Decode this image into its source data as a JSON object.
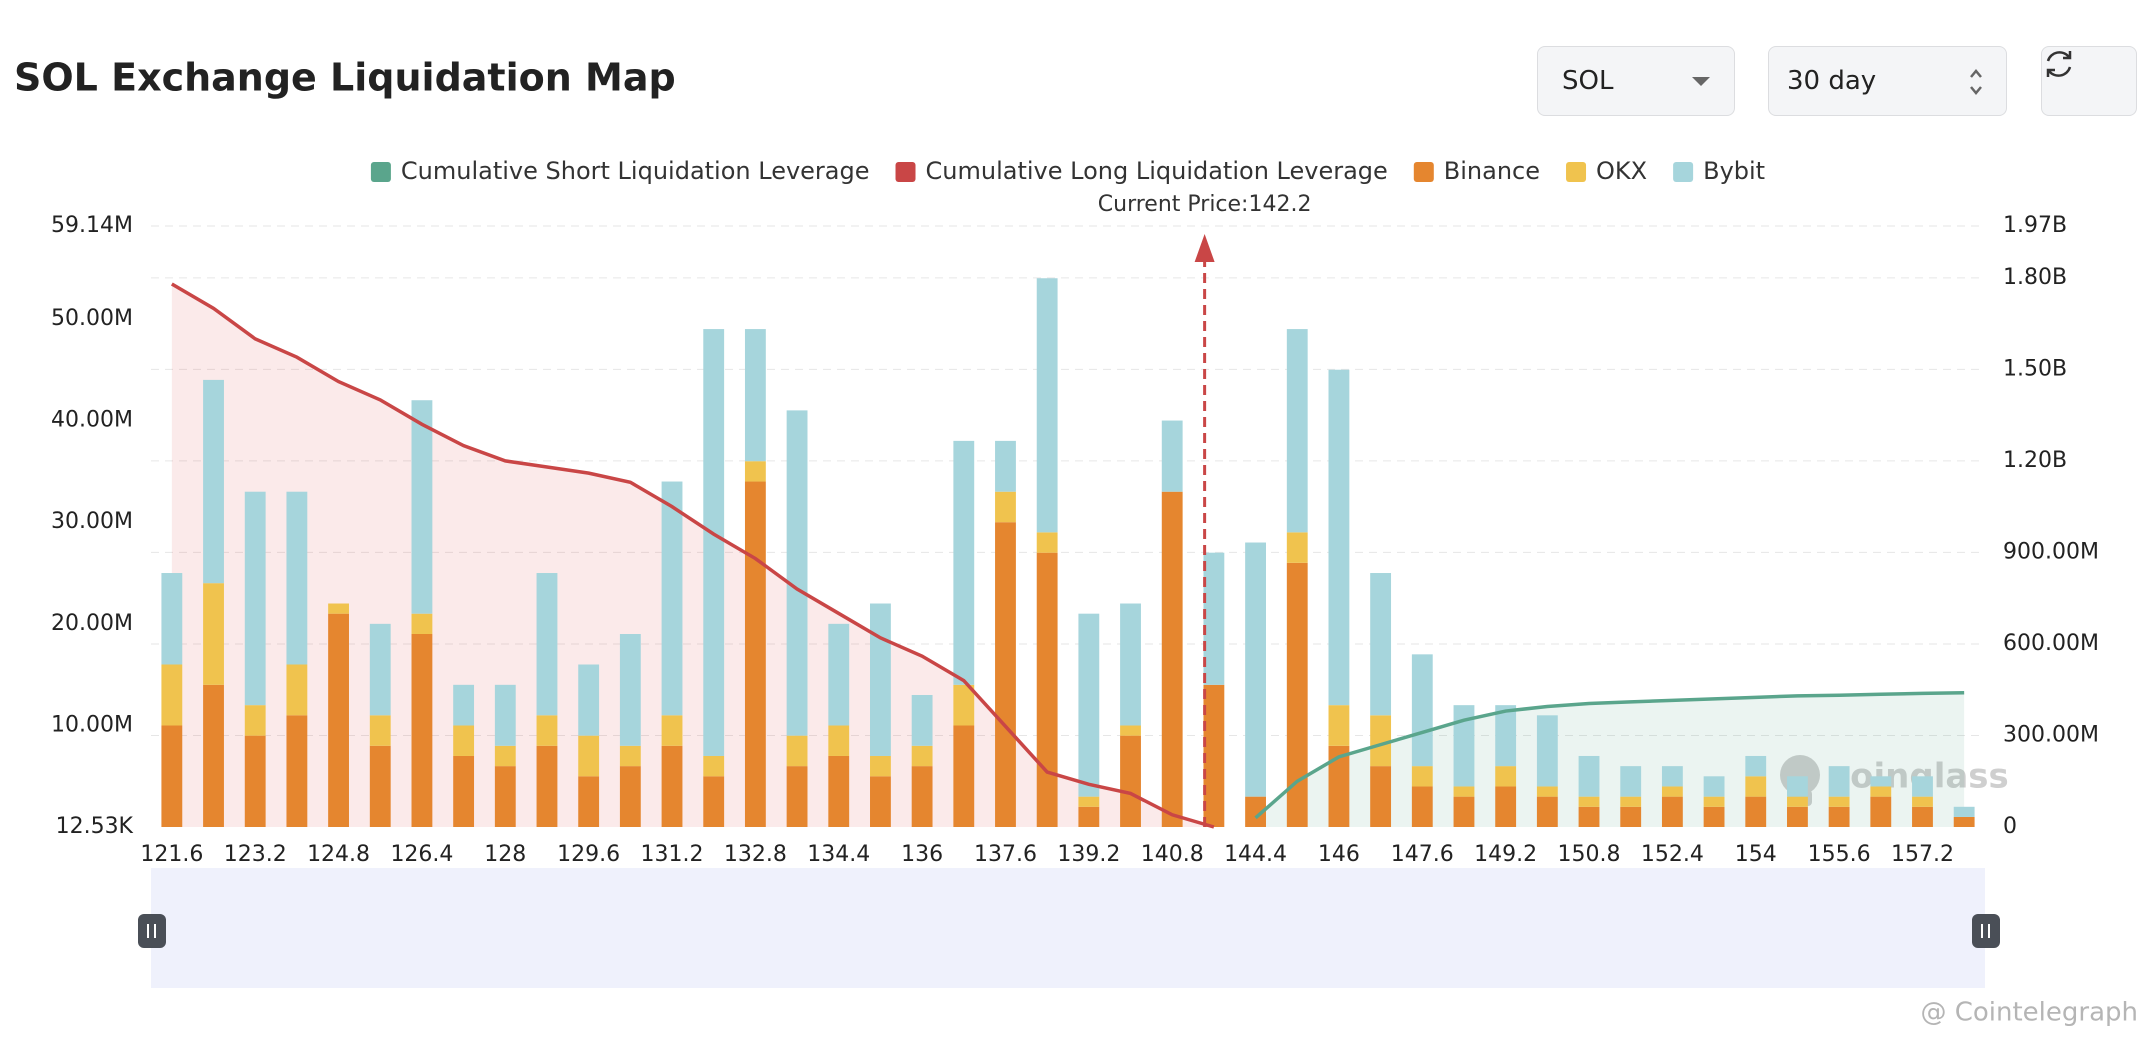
{
  "chart_data": {
    "type": "bar",
    "title": "SOL Exchange Liquidation Map",
    "categories": [
      "121.6",
      null,
      "123.2",
      null,
      "124.8",
      null,
      "126.4",
      null,
      "128",
      null,
      "129.6",
      null,
      "131.2",
      null,
      "132.8",
      null,
      "134.4",
      null,
      "136",
      null,
      "137.6",
      null,
      "139.2",
      null,
      "140.8",
      null,
      "144.4",
      null,
      "146",
      null,
      "147.6",
      null,
      "149.2",
      null,
      "150.8",
      null,
      "152.4",
      null,
      "154",
      null,
      "155.6",
      null,
      "157.2",
      null
    ],
    "series": [
      {
        "name": "Cumulative Short Liquidation Leverage",
        "type": "line",
        "axis": "y2",
        "color": "#5aa58c",
        "fill": "rgba(90,165,140,0.12)",
        "values": [
          null,
          null,
          null,
          null,
          null,
          null,
          null,
          null,
          null,
          null,
          null,
          null,
          null,
          null,
          null,
          null,
          null,
          null,
          null,
          null,
          null,
          null,
          null,
          null,
          null,
          null,
          30000000,
          150000000,
          230000000,
          270000000,
          310000000,
          350000000,
          380000000,
          395000000,
          405000000,
          410000000,
          415000000,
          420000000,
          425000000,
          430000000,
          432000000,
          435000000,
          438000000,
          440000000
        ]
      },
      {
        "name": "Cumulative Long Liquidation Leverage",
        "type": "line",
        "axis": "y2",
        "color": "#c94646",
        "fill": "rgba(220,80,80,0.12)",
        "values": [
          1780000000,
          1700000000,
          1600000000,
          1540000000,
          1460000000,
          1400000000,
          1320000000,
          1250000000,
          1200000000,
          1180000000,
          1160000000,
          1130000000,
          1050000000,
          960000000,
          880000000,
          780000000,
          700000000,
          620000000,
          560000000,
          480000000,
          330000000,
          180000000,
          140000000,
          110000000,
          40000000,
          0,
          null,
          null,
          null,
          null,
          null,
          null,
          null,
          null,
          null,
          null,
          null,
          null,
          null,
          null,
          null,
          null,
          null,
          null
        ]
      },
      {
        "name": "Binance",
        "type": "bar",
        "color": "#e5862f",
        "values": [
          10000000,
          14000000,
          9000000,
          11000000,
          21000000,
          8000000,
          19000000,
          7000000,
          6000000,
          8000000,
          5000000,
          6000000,
          8000000,
          5000000,
          34000000,
          6000000,
          7000000,
          5000000,
          6000000,
          10000000,
          30000000,
          27000000,
          2000000,
          9000000,
          33000000,
          14000000,
          3000000,
          26000000,
          8000000,
          6000000,
          4000000,
          3000000,
          4000000,
          3000000,
          2000000,
          2000000,
          3000000,
          2000000,
          3000000,
          2000000,
          2000000,
          3000000,
          2000000,
          1000000
        ]
      },
      {
        "name": "OKX",
        "type": "bar",
        "color": "#f0c34e",
        "values": [
          6000000,
          10000000,
          3000000,
          5000000,
          1000000,
          3000000,
          2000000,
          3000000,
          2000000,
          3000000,
          4000000,
          2000000,
          3000000,
          2000000,
          2000000,
          3000000,
          3000000,
          2000000,
          2000000,
          4000000,
          3000000,
          2000000,
          1000000,
          1000000,
          0,
          0,
          0,
          3000000,
          4000000,
          5000000,
          2000000,
          1000000,
          2000000,
          1000000,
          1000000,
          1000000,
          1000000,
          1000000,
          2000000,
          1000000,
          1000000,
          1000000,
          1000000,
          0
        ]
      },
      {
        "name": "Bybit",
        "type": "bar",
        "color": "#a6d5dc",
        "values": [
          9000000,
          20000000,
          21000000,
          17000000,
          0,
          9000000,
          21000000,
          4000000,
          6000000,
          14000000,
          7000000,
          11000000,
          23000000,
          42000000,
          13000000,
          32000000,
          10000000,
          15000000,
          5000000,
          24000000,
          5000000,
          25000000,
          18000000,
          12000000,
          7000000,
          13000000,
          25000000,
          20000000,
          33000000,
          14000000,
          11000000,
          8000000,
          6000000,
          7000000,
          4000000,
          3000000,
          2000000,
          2000000,
          2000000,
          2000000,
          3000000,
          1000000,
          2000000,
          1000000
        ]
      }
    ],
    "ylim": [
      12530,
      59140000
    ],
    "yticks": [
      {
        "value": 12530,
        "label": "12.53K"
      },
      {
        "value": 10000000,
        "label": "10.00M"
      },
      {
        "value": 20000000,
        "label": "20.00M"
      },
      {
        "value": 30000000,
        "label": "30.00M"
      },
      {
        "value": 40000000,
        "label": "40.00M"
      },
      {
        "value": 50000000,
        "label": "50.00M"
      },
      {
        "value": 59140000,
        "label": "59.14M"
      }
    ],
    "y2lim": [
      0,
      1970000000
    ],
    "y2ticks": [
      0,
      {
        "value": 300000000,
        "label": "300.00M"
      },
      {
        "value": 600000000,
        "label": "600.00M"
      },
      {
        "value": 900000000,
        "label": "900.00M"
      },
      {
        "value": 1200000000,
        "label": "1.20B"
      },
      {
        "value": 1500000000,
        "label": "1.50B"
      },
      {
        "value": 1800000000,
        "label": "1.80B"
      },
      {
        "value": 1970000000,
        "label": "1.97B"
      }
    ],
    "grid": true,
    "legend": "top",
    "annotation": {
      "text": "Current Price:142.2",
      "x": 142.2,
      "color": "#c94646"
    }
  },
  "controls": {
    "symbol": "SOL",
    "period": "30 day"
  },
  "watermark": "coinglass",
  "credit": "@ Cointelegraph"
}
